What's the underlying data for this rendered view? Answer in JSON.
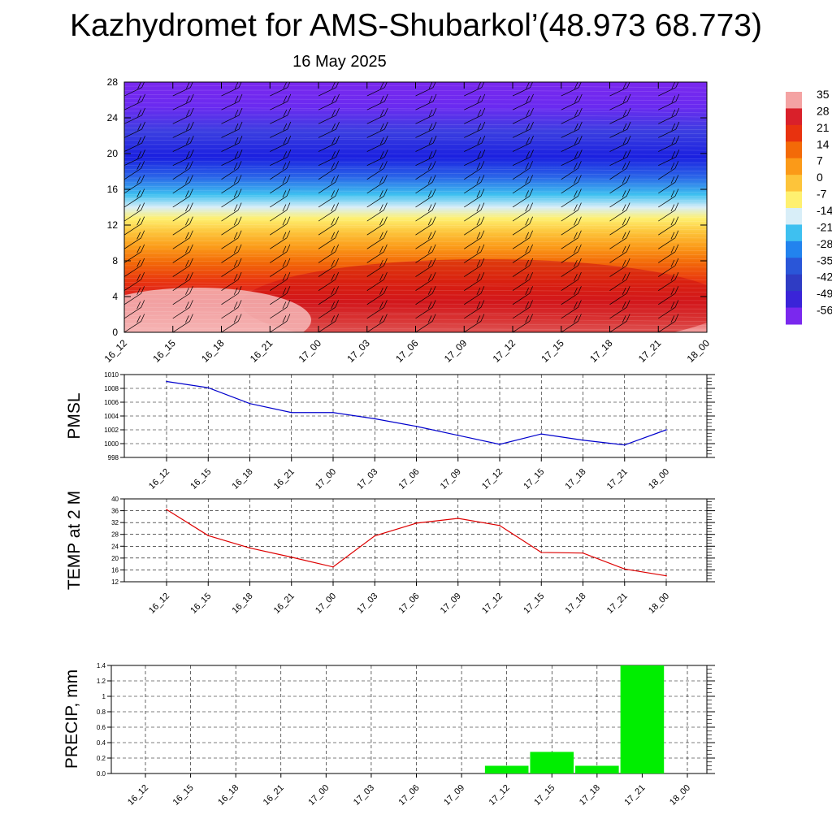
{
  "header": {
    "title": "Kazhydromet for AMS-Shubarkol’(48.973 68.773)",
    "subtitle": "16 May 2025"
  },
  "chart_data": [
    {
      "type": "heatmap",
      "name": "vertical-cross-section",
      "title": "",
      "x": [
        "16_12",
        "16_15",
        "16_18",
        "16_21",
        "17_00",
        "17_03",
        "17_06",
        "17_09",
        "17_12",
        "17_15",
        "17_18",
        "17_21",
        "18_00"
      ],
      "y_ticks": [
        0,
        4,
        8,
        12,
        16,
        20,
        24,
        28
      ],
      "ylim": [
        0,
        28
      ],
      "colorbar": {
        "labels": [
          "35",
          "28",
          "21",
          "14",
          "7",
          "0",
          "-7",
          "-14",
          "-21",
          "-28",
          "-35",
          "-42",
          "-49",
          "-56"
        ],
        "colors": [
          "#f4a3a3",
          "#d9202a",
          "#e8320f",
          "#f36a08",
          "#fb9a18",
          "#fdc43a",
          "#fef070",
          "#d8eef8",
          "#3ec0f0",
          "#2283ee",
          "#2a56d8",
          "#2f3cc4",
          "#3a24d8",
          "#7a28ee"
        ]
      },
      "fields": "temperature (shaded) with wind barbs",
      "grid": false
    },
    {
      "type": "line",
      "name": "pmsl",
      "ylabel": "PMSL",
      "x": [
        "16_12",
        "16_15",
        "16_18",
        "16_21",
        "17_00",
        "17_03",
        "17_06",
        "17_09",
        "17_12",
        "17_15",
        "17_18",
        "17_21",
        "18_00"
      ],
      "series": [
        {
          "values": [
            1009.0,
            1008.1,
            1005.8,
            1004.5,
            1004.5,
            1003.6,
            1002.5,
            1001.2,
            999.9,
            1001.4,
            1000.5,
            999.8,
            1002.0
          ],
          "color": "#0000cc"
        }
      ],
      "ylim": [
        998,
        1010
      ],
      "y_ticks": [
        998,
        1000,
        1002,
        1004,
        1006,
        1008,
        1010
      ],
      "grid": true
    },
    {
      "type": "line",
      "name": "temp-2m",
      "ylabel": "TEMP at 2 M",
      "x": [
        "16_12",
        "16_15",
        "16_18",
        "16_21",
        "17_00",
        "17_03",
        "17_06",
        "17_09",
        "17_12",
        "17_15",
        "17_18",
        "17_21",
        "18_00"
      ],
      "series": [
        {
          "values": [
            36.4,
            27.6,
            23.4,
            20.3,
            17.0,
            27.5,
            31.8,
            33.4,
            31.0,
            21.9,
            21.7,
            16.3,
            14.0
          ],
          "color": "#dd0000"
        }
      ],
      "ylim": [
        12,
        40
      ],
      "y_ticks": [
        12,
        16,
        20,
        24,
        28,
        32,
        36,
        40
      ],
      "grid": true
    },
    {
      "type": "bar",
      "name": "precip",
      "ylabel": "PRECIP, mm",
      "categories": [
        "16_12",
        "16_15",
        "16_18",
        "16_21",
        "17_00",
        "17_03",
        "17_06",
        "17_09",
        "17_12",
        "17_15",
        "17_18",
        "17_21",
        "18_00"
      ],
      "values": [
        0,
        0,
        0,
        0,
        0,
        0,
        0,
        0,
        0.1,
        0.28,
        0.1,
        1.4,
        0
      ],
      "color": "#00ee00",
      "ylim": [
        0,
        1.4
      ],
      "y_ticks": [
        "0.0",
        "0.2",
        "0.4",
        "0.6",
        "0.8",
        "1",
        "1.2",
        "1.4"
      ],
      "grid": true
    }
  ]
}
